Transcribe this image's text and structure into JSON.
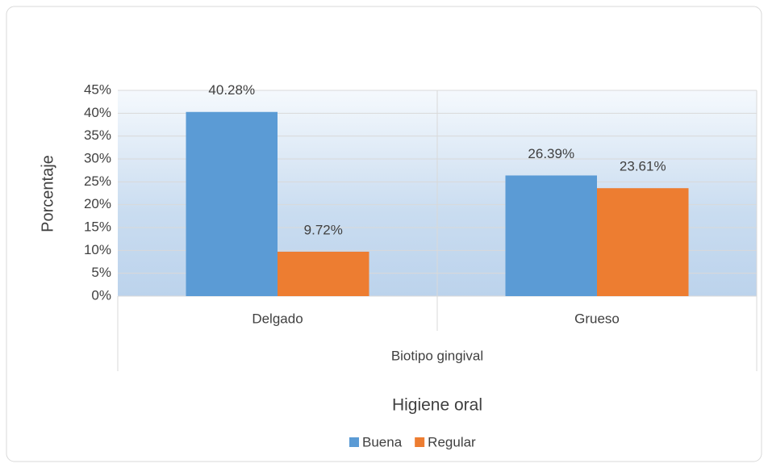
{
  "chart_data": {
    "type": "bar",
    "categories": [
      "Delgado",
      "Grueso"
    ],
    "category_group": "Biotipo gingival",
    "xlabel": "Higiene oral",
    "ylabel": "Porcentaje",
    "series": [
      {
        "name": "Buena",
        "color": "#5b9bd5",
        "values": [
          40.28,
          26.39
        ],
        "value_labels": [
          "40.28%",
          "26.39%"
        ]
      },
      {
        "name": "Regular",
        "color": "#ed7d31",
        "values": [
          9.72,
          23.61
        ],
        "value_labels": [
          "9.72%",
          "23.61%"
        ]
      }
    ],
    "ylim": [
      0,
      45
    ],
    "yticks": [
      {
        "value": 0,
        "label": "0%"
      },
      {
        "value": 5,
        "label": "5%"
      },
      {
        "value": 10,
        "label": "10%"
      },
      {
        "value": 15,
        "label": "15%"
      },
      {
        "value": 20,
        "label": "20%"
      },
      {
        "value": 25,
        "label": "25%"
      },
      {
        "value": 30,
        "label": "30%"
      },
      {
        "value": 35,
        "label": "35%"
      },
      {
        "value": 40,
        "label": "40%"
      },
      {
        "value": 45,
        "label": "45%"
      }
    ],
    "grid": true,
    "legend": "bottom"
  }
}
